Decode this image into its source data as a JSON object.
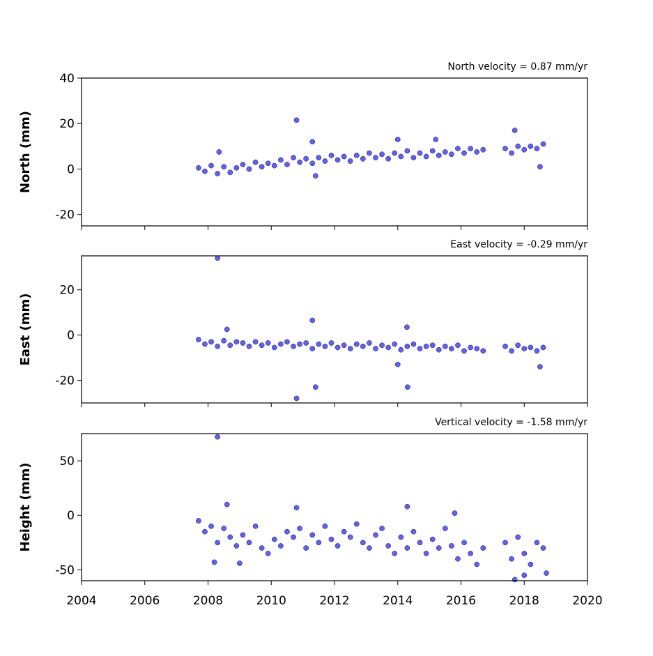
{
  "chart_data": [
    {
      "type": "scatter",
      "title": "North velocity = 0.87 mm/yr",
      "ylabel": "North (mm)",
      "color": "#5050f0",
      "xlim": [
        2004,
        2020
      ],
      "xticks": [
        2004,
        2006,
        2008,
        2010,
        2012,
        2014,
        2016,
        2018,
        2020
      ],
      "ylim": [
        -25,
        40
      ],
      "yticks": [
        -20,
        0,
        20,
        40
      ],
      "x": [
        2007.7,
        2007.9,
        2008.1,
        2008.3,
        2008.5,
        2008.7,
        2008.9,
        2009.1,
        2009.3,
        2009.5,
        2009.7,
        2009.9,
        2010.1,
        2010.3,
        2010.5,
        2010.7,
        2010.9,
        2011.1,
        2011.3,
        2011.5,
        2011.7,
        2011.9,
        2012.1,
        2012.3,
        2012.5,
        2012.7,
        2012.9,
        2013.1,
        2013.3,
        2013.5,
        2013.7,
        2013.9,
        2014.1,
        2014.3,
        2014.5,
        2014.7,
        2014.9,
        2015.1,
        2015.3,
        2015.5,
        2015.7,
        2015.9,
        2016.1,
        2016.3,
        2016.5,
        2016.7,
        2017.4,
        2017.6,
        2017.8,
        2018.0,
        2018.2,
        2018.4,
        2018.6,
        2008.35,
        2010.8,
        2011.3,
        2011.4,
        2014.0,
        2015.2,
        2017.7,
        2018.5
      ],
      "values": [
        0.5,
        -1,
        1.5,
        -2,
        1,
        -1.5,
        0.5,
        2,
        0,
        3,
        1,
        2.5,
        1.5,
        4,
        2,
        5,
        3,
        4.5,
        2.5,
        5,
        3.5,
        6,
        4,
        5.5,
        3.5,
        6,
        4.5,
        7,
        5,
        6.5,
        4.5,
        7,
        5.5,
        8,
        5,
        7,
        5.5,
        8,
        6,
        7.5,
        6.5,
        9,
        7,
        9,
        7.5,
        8.5,
        9,
        7,
        10,
        8.5,
        10,
        9,
        11,
        7.5,
        21.5,
        12,
        -3,
        13,
        13,
        17,
        1
      ]
    },
    {
      "type": "scatter",
      "title": "East velocity = -0.29 mm/yr",
      "ylabel": "East (mm)",
      "color": "#5050f0",
      "xlim": [
        2004,
        2020
      ],
      "xticks": [
        2004,
        2006,
        2008,
        2010,
        2012,
        2014,
        2016,
        2018,
        2020
      ],
      "ylim": [
        -30,
        35
      ],
      "yticks": [
        -20,
        0,
        20
      ],
      "x": [
        2007.7,
        2007.9,
        2008.1,
        2008.3,
        2008.5,
        2008.7,
        2008.9,
        2009.1,
        2009.3,
        2009.5,
        2009.7,
        2009.9,
        2010.1,
        2010.3,
        2010.5,
        2010.7,
        2010.9,
        2011.1,
        2011.3,
        2011.5,
        2011.7,
        2011.9,
        2012.1,
        2012.3,
        2012.5,
        2012.7,
        2012.9,
        2013.1,
        2013.3,
        2013.5,
        2013.7,
        2013.9,
        2014.1,
        2014.3,
        2014.5,
        2014.7,
        2014.9,
        2015.1,
        2015.3,
        2015.5,
        2015.7,
        2015.9,
        2016.1,
        2016.3,
        2016.5,
        2016.7,
        2017.4,
        2017.6,
        2017.8,
        2018.0,
        2018.2,
        2018.4,
        2018.6,
        2008.3,
        2008.6,
        2010.8,
        2011.3,
        2011.4,
        2014.0,
        2014.29,
        2014.31,
        2018.5
      ],
      "values": [
        -2,
        -4,
        -3,
        -5,
        -2.5,
        -4.5,
        -3,
        -3.5,
        -5,
        -3,
        -4.5,
        -3.5,
        -5.5,
        -4,
        -3,
        -5,
        -4,
        -3.5,
        -6,
        -4,
        -5,
        -3.5,
        -5.5,
        -4.5,
        -6,
        -4,
        -5,
        -3.5,
        -6,
        -4.5,
        -5.5,
        -4,
        -6.5,
        -5,
        -4,
        -6,
        -5,
        -4.5,
        -6.5,
        -5,
        -6,
        -4.5,
        -7,
        -5.5,
        -6,
        -7,
        -5,
        -7,
        -4.5,
        -6,
        -5.5,
        -7,
        -5.5,
        34,
        2.5,
        -28,
        6.5,
        -23,
        -13,
        3.5,
        -23,
        -14
      ]
    },
    {
      "type": "scatter",
      "title": "Vertical velocity = -1.58 mm/yr",
      "ylabel": "Height (mm)",
      "color": "#5050f0",
      "xlim": [
        2004,
        2020
      ],
      "xticks": [
        2004,
        2006,
        2008,
        2010,
        2012,
        2014,
        2016,
        2018,
        2020
      ],
      "ylim": [
        -60,
        75
      ],
      "yticks": [
        -50,
        0,
        50
      ],
      "x": [
        2007.7,
        2007.9,
        2008.1,
        2008.3,
        2008.5,
        2008.7,
        2008.9,
        2009.1,
        2009.3,
        2009.5,
        2009.7,
        2009.9,
        2010.1,
        2010.3,
        2010.5,
        2010.7,
        2010.9,
        2011.1,
        2011.3,
        2011.5,
        2011.7,
        2011.9,
        2012.1,
        2012.3,
        2012.5,
        2012.7,
        2012.9,
        2013.1,
        2013.3,
        2013.5,
        2013.7,
        2013.9,
        2014.1,
        2014.3,
        2014.5,
        2014.7,
        2014.9,
        2015.1,
        2015.3,
        2015.5,
        2015.7,
        2015.9,
        2016.1,
        2016.3,
        2016.5,
        2016.7,
        2017.4,
        2017.6,
        2017.8,
        2018.0,
        2018.2,
        2018.4,
        2018.6,
        2008.3,
        2008.2,
        2008.6,
        2009.0,
        2010.8,
        2014.3,
        2015.8,
        2017.7,
        2018.0,
        2018.7
      ],
      "values": [
        -5,
        -15,
        -10,
        -25,
        -12,
        -20,
        -28,
        -18,
        -25,
        -10,
        -30,
        -35,
        -22,
        -28,
        -15,
        -20,
        -12,
        -30,
        -18,
        -25,
        -10,
        -22,
        -28,
        -15,
        -20,
        -8,
        -25,
        -30,
        -18,
        -12,
        -28,
        -35,
        -20,
        -30,
        -15,
        -25,
        -35,
        -22,
        -30,
        -12,
        -28,
        -40,
        -25,
        -35,
        -45,
        -30,
        -25,
        -40,
        -20,
        -35,
        -45,
        -25,
        -30,
        72,
        -43,
        10,
        -44,
        7,
        8,
        2,
        -59,
        -55,
        -53
      ]
    }
  ]
}
